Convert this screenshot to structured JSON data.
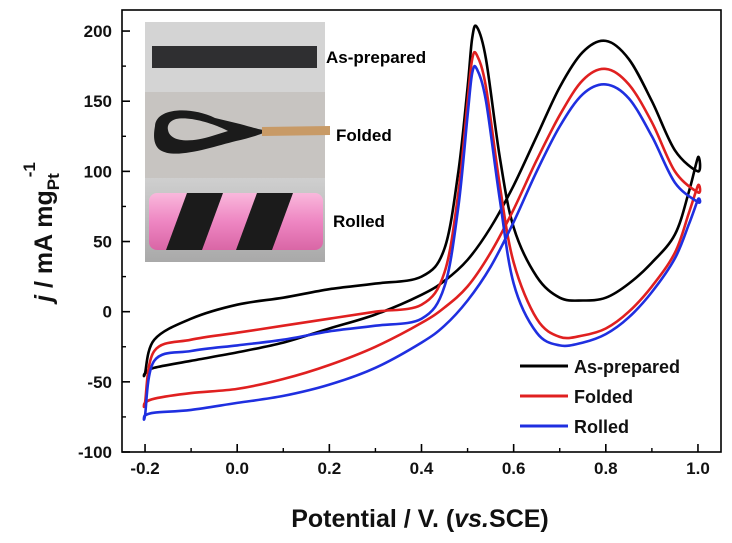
{
  "chart_data": {
    "type": "line",
    "xlabel_main": "Potential / V. (",
    "xlabel_italic": "vs.",
    "xlabel_tail": "SCE)",
    "ylabel_j": "j",
    "ylabel_mid": " / mA mg",
    "ylabel_sub": "Pt",
    "ylabel_sup": "-1",
    "xlim": [
      -0.25,
      1.05
    ],
    "ylim": [
      -100,
      215
    ],
    "xticks": [
      -0.2,
      0.0,
      0.2,
      0.4,
      0.6,
      0.8,
      1.0
    ],
    "xtick_labels": [
      "-0.2",
      "0.0",
      "0.2",
      "0.4",
      "0.6",
      "0.8",
      "1.0"
    ],
    "yticks": [
      -100,
      -50,
      0,
      50,
      100,
      150,
      200
    ],
    "ytick_labels": [
      "-100",
      "-50",
      "0",
      "50",
      "100",
      "150",
      "200"
    ],
    "legend_position": "bottom-right",
    "series": [
      {
        "name": "As-prepared",
        "color": "#000000",
        "x": [
          -0.2,
          -0.18,
          -0.1,
          0.0,
          0.1,
          0.2,
          0.3,
          0.4,
          0.45,
          0.48,
          0.5,
          0.51,
          0.52,
          0.54,
          0.57,
          0.6,
          0.65,
          0.7,
          0.75,
          0.8,
          0.85,
          0.9,
          0.95,
          0.98,
          1.0,
          1.0,
          0.95,
          0.9,
          0.85,
          0.8,
          0.75,
          0.7,
          0.65,
          0.6,
          0.55,
          0.5,
          0.45,
          0.4,
          0.3,
          0.2,
          0.1,
          0.0,
          -0.1,
          -0.18,
          -0.2
        ],
        "y": [
          -44,
          -20,
          -5,
          5,
          10,
          16,
          20,
          25,
          45,
          100,
          160,
          195,
          203,
          180,
          110,
          60,
          25,
          10,
          8,
          10,
          20,
          35,
          55,
          85,
          110,
          100,
          115,
          150,
          180,
          193,
          185,
          160,
          125,
          90,
          60,
          37,
          22,
          12,
          -2,
          -12,
          -22,
          -29,
          -35,
          -40,
          -44
        ]
      },
      {
        "name": "Folded",
        "color": "#e02020",
        "x": [
          -0.2,
          -0.18,
          -0.1,
          0.0,
          0.1,
          0.2,
          0.3,
          0.4,
          0.45,
          0.48,
          0.5,
          0.51,
          0.52,
          0.54,
          0.57,
          0.6,
          0.65,
          0.7,
          0.75,
          0.8,
          0.85,
          0.9,
          0.95,
          0.98,
          1.0,
          1.0,
          0.95,
          0.9,
          0.85,
          0.8,
          0.75,
          0.7,
          0.65,
          0.6,
          0.55,
          0.5,
          0.45,
          0.4,
          0.3,
          0.2,
          0.1,
          0.0,
          -0.1,
          -0.18,
          -0.2
        ],
        "y": [
          -65,
          -28,
          -20,
          -15,
          -10,
          -5,
          0,
          5,
          28,
          85,
          150,
          180,
          183,
          160,
          90,
          35,
          -5,
          -18,
          -17,
          -12,
          0,
          18,
          42,
          70,
          90,
          85,
          100,
          135,
          162,
          173,
          165,
          140,
          108,
          73,
          42,
          18,
          3,
          -8,
          -25,
          -38,
          -48,
          -55,
          -58,
          -62,
          -65
        ]
      },
      {
        "name": "Rolled",
        "color": "#1f2fe0",
        "x": [
          -0.2,
          -0.18,
          -0.1,
          0.0,
          0.1,
          0.2,
          0.3,
          0.4,
          0.45,
          0.48,
          0.5,
          0.51,
          0.52,
          0.54,
          0.57,
          0.6,
          0.65,
          0.7,
          0.75,
          0.8,
          0.85,
          0.9,
          0.95,
          0.98,
          1.0,
          1.0,
          0.95,
          0.9,
          0.85,
          0.8,
          0.75,
          0.7,
          0.65,
          0.6,
          0.55,
          0.5,
          0.45,
          0.4,
          0.3,
          0.2,
          0.1,
          0.0,
          -0.1,
          -0.18,
          -0.2
        ],
        "y": [
          -74,
          -35,
          -28,
          -24,
          -20,
          -14,
          -10,
          -5,
          18,
          75,
          140,
          170,
          173,
          150,
          80,
          20,
          -15,
          -24,
          -22,
          -16,
          -4,
          14,
          38,
          62,
          80,
          78,
          92,
          125,
          152,
          162,
          155,
          132,
          100,
          64,
          32,
          8,
          -10,
          -22,
          -40,
          -52,
          -60,
          -65,
          -70,
          -72,
          -74
        ]
      }
    ],
    "inset": {
      "labels": [
        {
          "text": "As-prepared",
          "color": "#000000"
        },
        {
          "text": "Folded",
          "color": "#e0301c"
        },
        {
          "text": "Rolled",
          "color": "#2a2ad8"
        }
      ]
    }
  }
}
